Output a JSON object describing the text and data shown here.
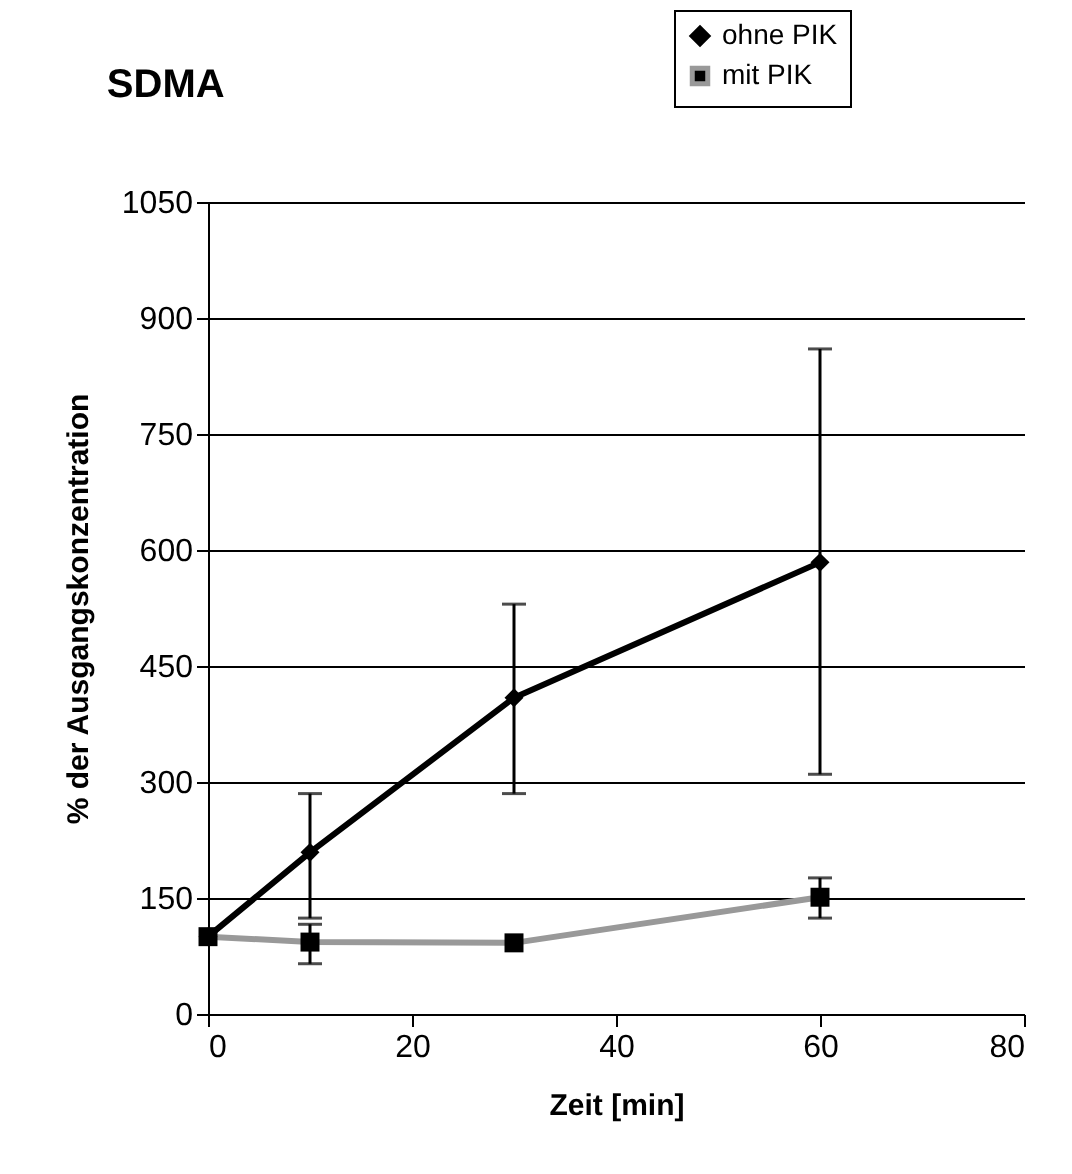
{
  "chart_data": {
    "type": "line",
    "title": "SDMA",
    "xlabel": "Zeit [min]",
    "ylabel": "% der Ausgangskonzentration",
    "x": [
      0,
      10,
      30,
      60
    ],
    "series": [
      {
        "name": "ohne PIK",
        "color": "#000000",
        "marker": "diamond",
        "values": [
          100,
          209,
          409,
          584
        ],
        "errors": [
          null,
          [
            124,
            285
          ],
          [
            285,
            530
          ],
          [
            310,
            860
          ]
        ]
      },
      {
        "name": "mit PIK",
        "color": "#999999",
        "marker": "square",
        "values": [
          100,
          93,
          92,
          151
        ],
        "errors": [
          null,
          [
            65,
            116
          ],
          null,
          [
            124,
            176
          ]
        ]
      }
    ],
    "xlim": [
      0,
      80
    ],
    "xticks": [
      0,
      20,
      40,
      60,
      80
    ],
    "ylim": [
      0,
      1050
    ],
    "yticks": [
      0,
      150,
      300,
      450,
      600,
      750,
      900,
      1050
    ],
    "grid": "y",
    "legend": "top right",
    "line_style": "solid"
  }
}
